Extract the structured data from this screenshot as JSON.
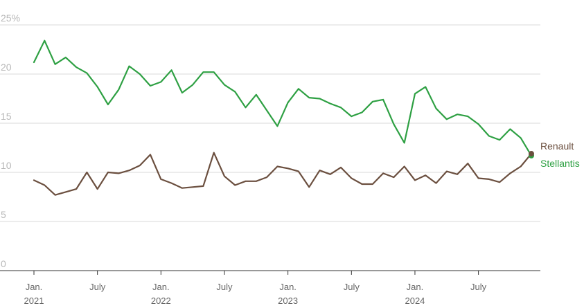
{
  "chart_data": {
    "type": "line",
    "title": "",
    "xlabel": "",
    "ylabel": "",
    "ylim": [
      0,
      25
    ],
    "y_ticks": [
      "0",
      "5",
      "10",
      "15",
      "20",
      "25%"
    ],
    "y_tick_values": [
      0,
      5,
      10,
      15,
      20,
      25
    ],
    "x_tick_labels": [
      {
        "line1": "Jan.",
        "line2": "2021",
        "date": "2021-01"
      },
      {
        "line1": "July",
        "line2": "",
        "date": "2021-07"
      },
      {
        "line1": "Jan.",
        "line2": "2022",
        "date": "2022-01"
      },
      {
        "line1": "July",
        "line2": "",
        "date": "2022-07"
      },
      {
        "line1": "Jan.",
        "line2": "2023",
        "date": "2023-01"
      },
      {
        "line1": "July",
        "line2": "",
        "date": "2023-07"
      },
      {
        "line1": "Jan.",
        "line2": "2024",
        "date": "2024-01"
      },
      {
        "line1": "July",
        "line2": "",
        "date": "2024-07"
      }
    ],
    "grid": true,
    "legend": "direct labels at line ends (right)",
    "x": [
      "2021-01",
      "2021-02",
      "2021-03",
      "2021-04",
      "2021-05",
      "2021-06",
      "2021-07",
      "2021-08",
      "2021-09",
      "2021-10",
      "2021-11",
      "2021-12",
      "2022-01",
      "2022-02",
      "2022-03",
      "2022-04",
      "2022-05",
      "2022-06",
      "2022-07",
      "2022-08",
      "2022-09",
      "2022-10",
      "2022-11",
      "2022-12",
      "2023-01",
      "2023-02",
      "2023-03",
      "2023-04",
      "2023-05",
      "2023-06",
      "2023-07",
      "2023-08",
      "2023-09",
      "2023-10",
      "2023-11",
      "2023-12",
      "2024-01",
      "2024-02",
      "2024-03",
      "2024-04",
      "2024-05",
      "2024-06",
      "2024-07",
      "2024-08",
      "2024-09",
      "2024-10",
      "2024-11",
      "2024-12"
    ],
    "series": [
      {
        "name": "Stellantis",
        "color": "#2ea043",
        "values": [
          21.2,
          23.4,
          21.0,
          21.7,
          20.7,
          20.1,
          18.7,
          16.9,
          18.4,
          20.8,
          20.0,
          18.8,
          19.2,
          20.4,
          18.1,
          18.9,
          20.2,
          20.2,
          18.9,
          18.2,
          16.6,
          17.9,
          16.3,
          14.7,
          17.1,
          18.5,
          17.6,
          17.5,
          17.0,
          16.6,
          15.7,
          16.1,
          17.2,
          17.4,
          14.9,
          13.0,
          18.0,
          18.7,
          16.5,
          15.4,
          15.9,
          15.7,
          14.9,
          13.7,
          13.3,
          14.4,
          13.5,
          11.7
        ]
      },
      {
        "name": "Renault",
        "color": "#6b4f3f",
        "values": [
          9.2,
          8.7,
          7.7,
          8.0,
          8.3,
          10.0,
          8.3,
          10.0,
          9.9,
          10.2,
          10.7,
          11.8,
          9.3,
          8.9,
          8.4,
          8.5,
          8.6,
          12.0,
          9.6,
          8.7,
          9.1,
          9.1,
          9.5,
          10.6,
          10.4,
          10.1,
          8.5,
          10.2,
          9.8,
          10.5,
          9.4,
          8.8,
          8.8,
          9.9,
          9.5,
          10.6,
          9.2,
          9.7,
          8.9,
          10.1,
          9.8,
          10.9,
          9.4,
          9.3,
          9.0,
          9.9,
          10.6,
          11.9
        ]
      }
    ]
  }
}
